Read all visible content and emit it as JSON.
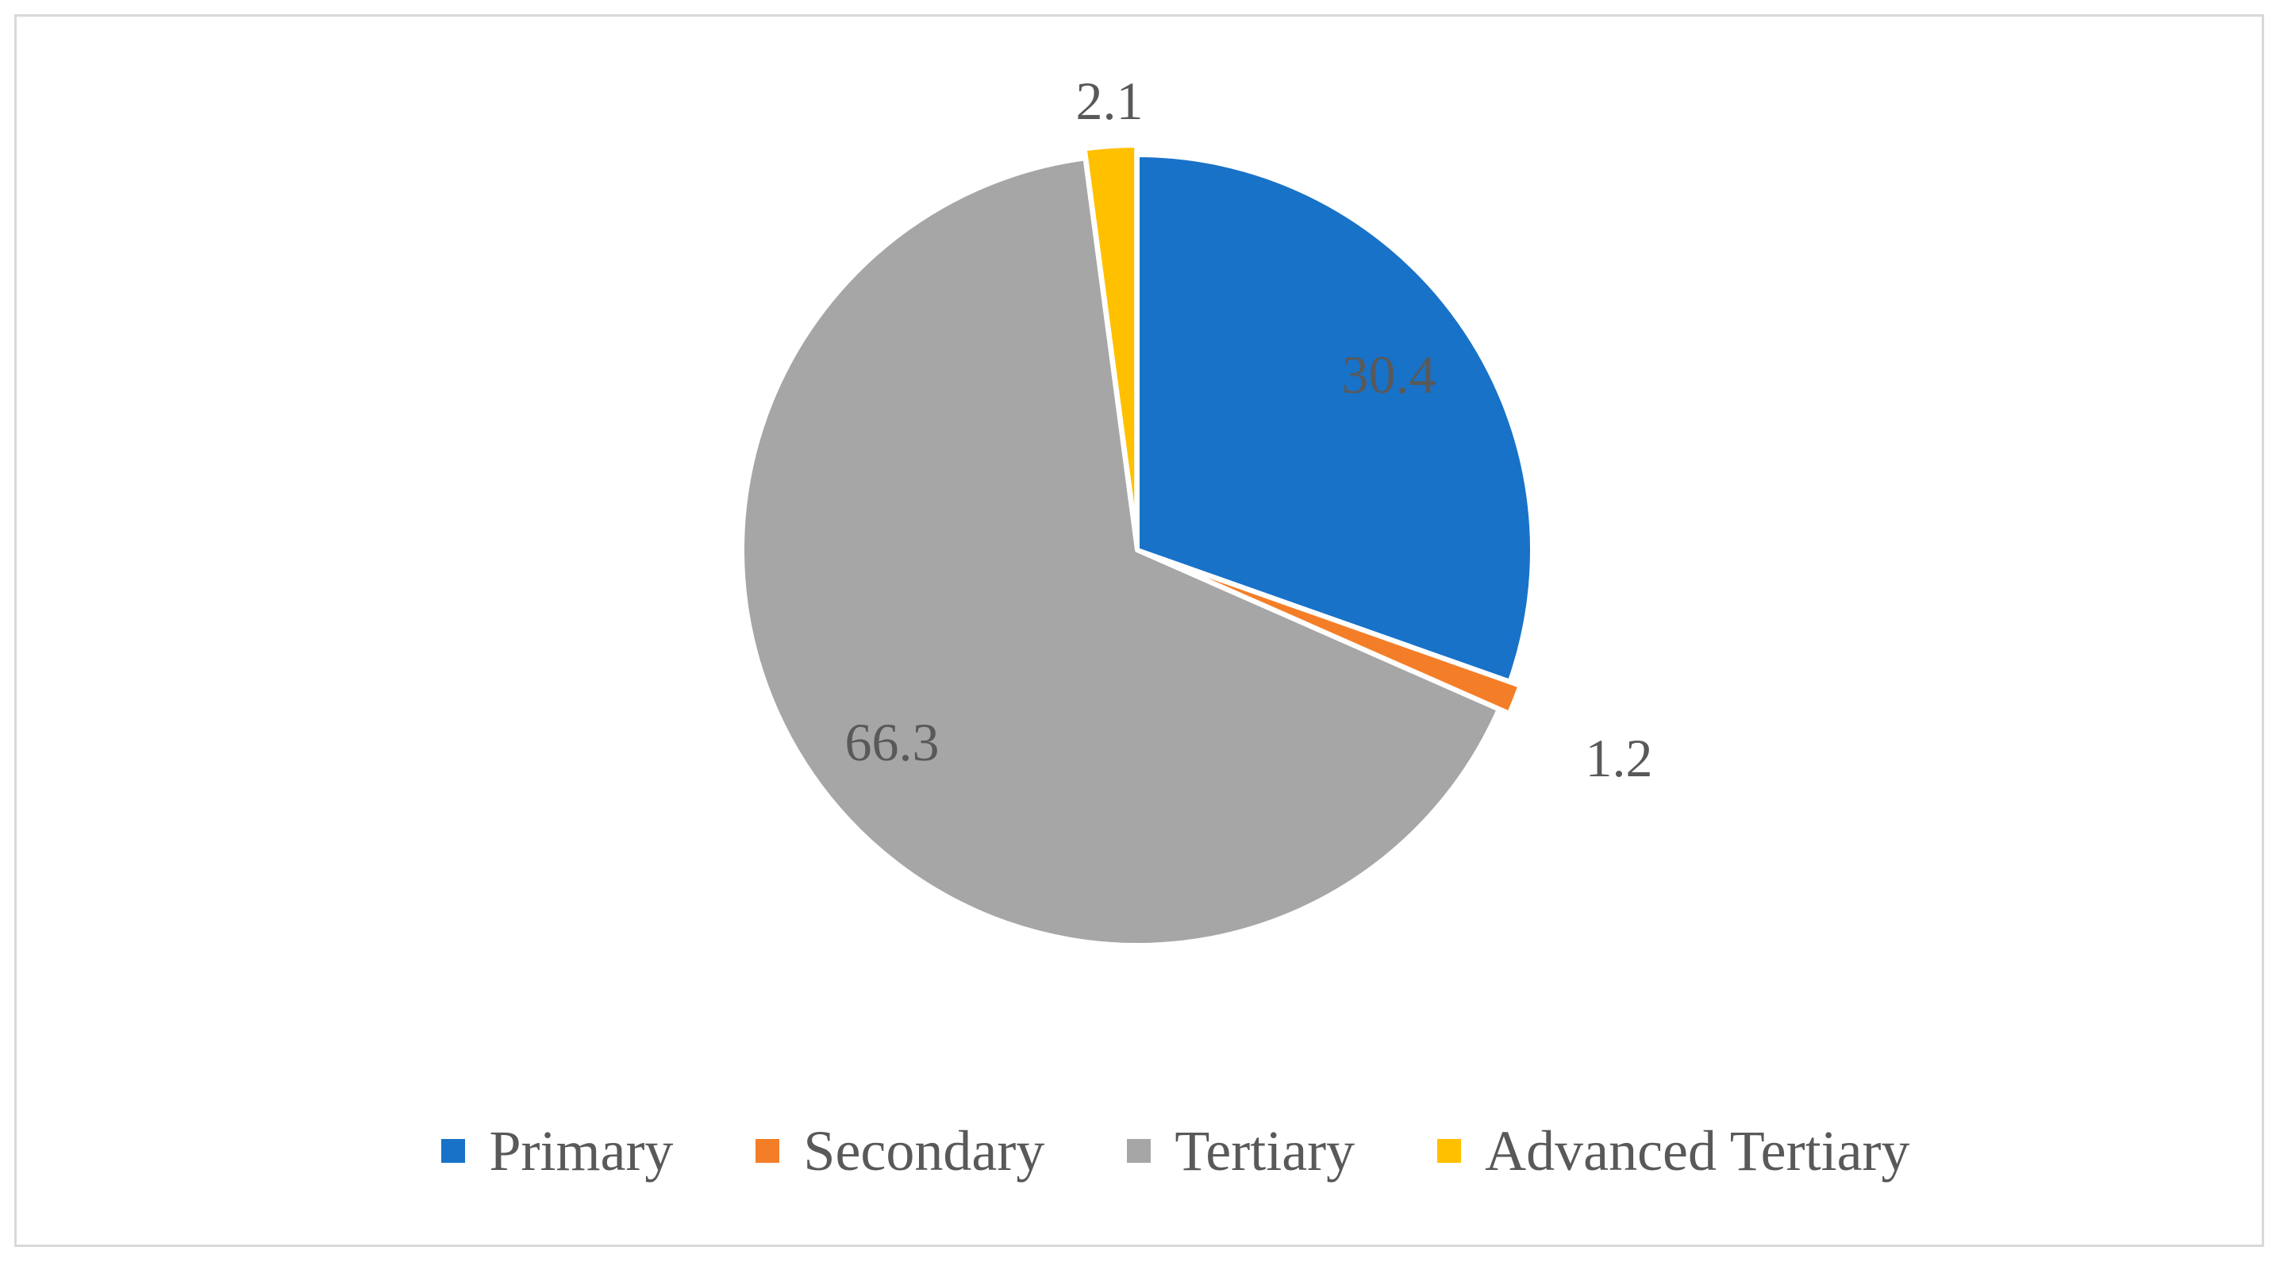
{
  "chart_data": {
    "type": "pie",
    "categories": [
      "Primary",
      "Secondary",
      "Tertiary",
      "Advanced Tertiary"
    ],
    "values": [
      30.4,
      1.2,
      66.3,
      2.1
    ],
    "data_labels": [
      "30.4",
      "1.2",
      "66.3",
      "2.1"
    ],
    "colors": [
      "#1872C8",
      "#F47E28",
      "#A6A6A6",
      "#FFC000"
    ],
    "legend_position": "bottom",
    "start_angle": "top, clockwise",
    "exploded_slices": [
      "Secondary",
      "Advanced Tertiary"
    ]
  }
}
